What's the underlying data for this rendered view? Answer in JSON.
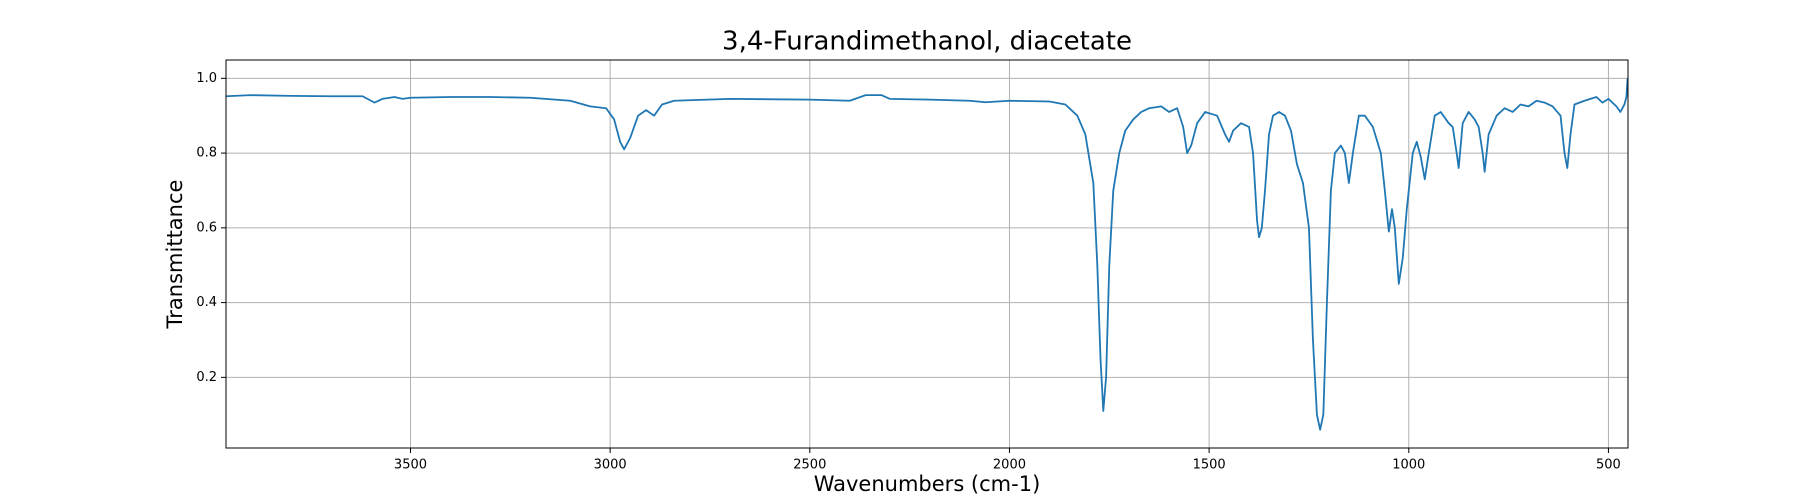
{
  "chart_data": {
    "type": "line",
    "title": "3,4-Furandimethanol, diacetate",
    "xlabel": "Wavenumbers (cm-1)",
    "ylabel": "Transmittance",
    "x": [
      3962,
      3900,
      3800,
      3700,
      3620,
      3590,
      3570,
      3540,
      3520,
      3500,
      3400,
      3300,
      3200,
      3100,
      3050,
      3010,
      2990,
      2975,
      2965,
      2950,
      2930,
      2910,
      2890,
      2870,
      2840,
      2700,
      2500,
      2400,
      2360,
      2320,
      2300,
      2200,
      2100,
      2060,
      2000,
      1900,
      1860,
      1830,
      1810,
      1790,
      1780,
      1772,
      1765,
      1758,
      1750,
      1740,
      1725,
      1710,
      1690,
      1670,
      1650,
      1620,
      1600,
      1580,
      1565,
      1555,
      1545,
      1530,
      1510,
      1480,
      1460,
      1450,
      1440,
      1420,
      1400,
      1390,
      1380,
      1375,
      1368,
      1360,
      1350,
      1340,
      1325,
      1310,
      1295,
      1280,
      1265,
      1250,
      1240,
      1230,
      1222,
      1214,
      1205,
      1195,
      1185,
      1170,
      1160,
      1150,
      1140,
      1125,
      1110,
      1090,
      1070,
      1060,
      1050,
      1042,
      1035,
      1025,
      1015,
      1005,
      990,
      980,
      970,
      960,
      950,
      935,
      920,
      900,
      890,
      880,
      875,
      865,
      850,
      835,
      825,
      815,
      810,
      800,
      780,
      760,
      740,
      720,
      700,
      680,
      660,
      640,
      620,
      610,
      603,
      595,
      585,
      560,
      530,
      515,
      500,
      480,
      470,
      460,
      455,
      452
    ],
    "values": [
      0.952,
      0.955,
      0.953,
      0.952,
      0.952,
      0.935,
      0.945,
      0.95,
      0.945,
      0.948,
      0.95,
      0.95,
      0.948,
      0.94,
      0.925,
      0.92,
      0.89,
      0.83,
      0.81,
      0.84,
      0.9,
      0.915,
      0.9,
      0.93,
      0.94,
      0.945,
      0.943,
      0.94,
      0.955,
      0.955,
      0.945,
      0.943,
      0.94,
      0.936,
      0.94,
      0.938,
      0.93,
      0.9,
      0.85,
      0.72,
      0.5,
      0.25,
      0.11,
      0.2,
      0.5,
      0.7,
      0.8,
      0.86,
      0.89,
      0.91,
      0.92,
      0.925,
      0.91,
      0.92,
      0.87,
      0.8,
      0.82,
      0.88,
      0.91,
      0.9,
      0.85,
      0.83,
      0.86,
      0.88,
      0.87,
      0.8,
      0.62,
      0.575,
      0.6,
      0.7,
      0.85,
      0.9,
      0.91,
      0.9,
      0.86,
      0.77,
      0.72,
      0.6,
      0.3,
      0.1,
      0.06,
      0.1,
      0.4,
      0.7,
      0.8,
      0.82,
      0.8,
      0.72,
      0.8,
      0.9,
      0.9,
      0.87,
      0.8,
      0.7,
      0.59,
      0.65,
      0.6,
      0.45,
      0.52,
      0.65,
      0.8,
      0.83,
      0.79,
      0.73,
      0.8,
      0.9,
      0.91,
      0.88,
      0.87,
      0.8,
      0.76,
      0.88,
      0.91,
      0.89,
      0.87,
      0.8,
      0.75,
      0.85,
      0.9,
      0.92,
      0.91,
      0.93,
      0.925,
      0.94,
      0.935,
      0.925,
      0.9,
      0.8,
      0.76,
      0.85,
      0.93,
      0.94,
      0.95,
      0.935,
      0.945,
      0.925,
      0.91,
      0.93,
      0.95,
      1.0
    ],
    "color": "#1f77b4",
    "xlim": [
      3962,
      451
    ],
    "ylim": [
      0.011,
      1.049
    ],
    "xticks": [
      3500,
      3000,
      2500,
      2000,
      1500,
      1000,
      500
    ],
    "yticks": [
      0.2,
      0.4,
      0.6,
      0.8,
      {
        "value": 1,
        "label": "1.0"
      }
    ],
    "grid": true
  }
}
